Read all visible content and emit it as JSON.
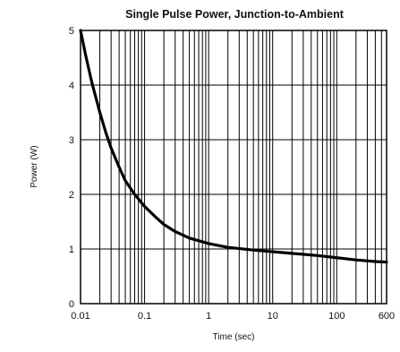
{
  "chart_data": {
    "type": "line",
    "title": "Single Pulse Power, Junction-to-Ambient",
    "xlabel": "Time (sec)",
    "ylabel": "Power (W)",
    "x_scale": "log",
    "xlim": [
      0.01,
      600
    ],
    "ylim": [
      0,
      5
    ],
    "x_ticks": [
      "0.01",
      "0.1",
      "1",
      "10",
      "100",
      "600"
    ],
    "y_ticks": [
      "0",
      "1",
      "2",
      "3",
      "4",
      "5"
    ],
    "grid": true,
    "series": [
      {
        "x": [
          0.01,
          0.012,
          0.015,
          0.02,
          0.025,
          0.03,
          0.04,
          0.05,
          0.07,
          0.1,
          0.15,
          0.2,
          0.3,
          0.5,
          1,
          2,
          5,
          10,
          20,
          50,
          100,
          200,
          400,
          600
        ],
        "y": [
          5.0,
          4.55,
          4.05,
          3.5,
          3.12,
          2.85,
          2.5,
          2.25,
          2.0,
          1.78,
          1.58,
          1.45,
          1.32,
          1.2,
          1.1,
          1.03,
          0.98,
          0.95,
          0.92,
          0.88,
          0.84,
          0.8,
          0.77,
          0.76
        ]
      }
    ]
  }
}
